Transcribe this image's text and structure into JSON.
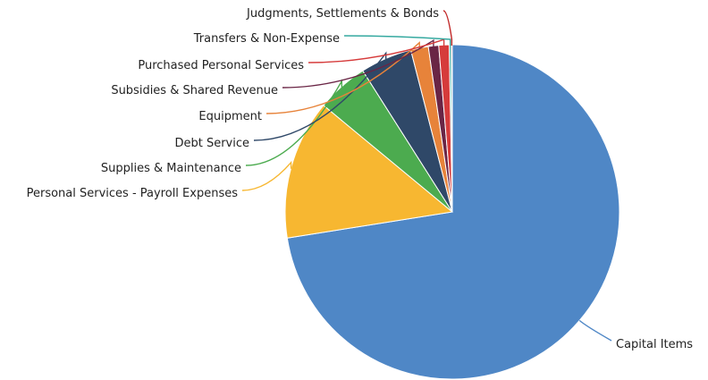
{
  "chart_data": {
    "type": "pie",
    "title": "",
    "legend": "none",
    "slices": [
      {
        "label": "Capital Items",
        "value": 72.5,
        "color": "#4f87c6"
      },
      {
        "label": "Personal Services - Payroll Expenses",
        "value": 13.5,
        "color": "#f7b731"
      },
      {
        "label": "Supplies & Maintenance",
        "value": 5.0,
        "color": "#4cab4f"
      },
      {
        "label": "Debt Service",
        "value": 5.0,
        "color": "#2f4868"
      },
      {
        "label": "Equipment",
        "value": 1.7,
        "color": "#e7833a"
      },
      {
        "label": "Subsidies & Shared Revenue",
        "value": 1.0,
        "color": "#6a2545"
      },
      {
        "label": "Purchased Personal Services",
        "value": 1.0,
        "color": "#d63b3b"
      },
      {
        "label": "Transfers & Non-Expense",
        "value": 0.2,
        "color": "#35a9a0"
      },
      {
        "label": "Judgments, Settlements & Bonds",
        "value": 0.1,
        "color": "#c22a2a"
      }
    ]
  }
}
